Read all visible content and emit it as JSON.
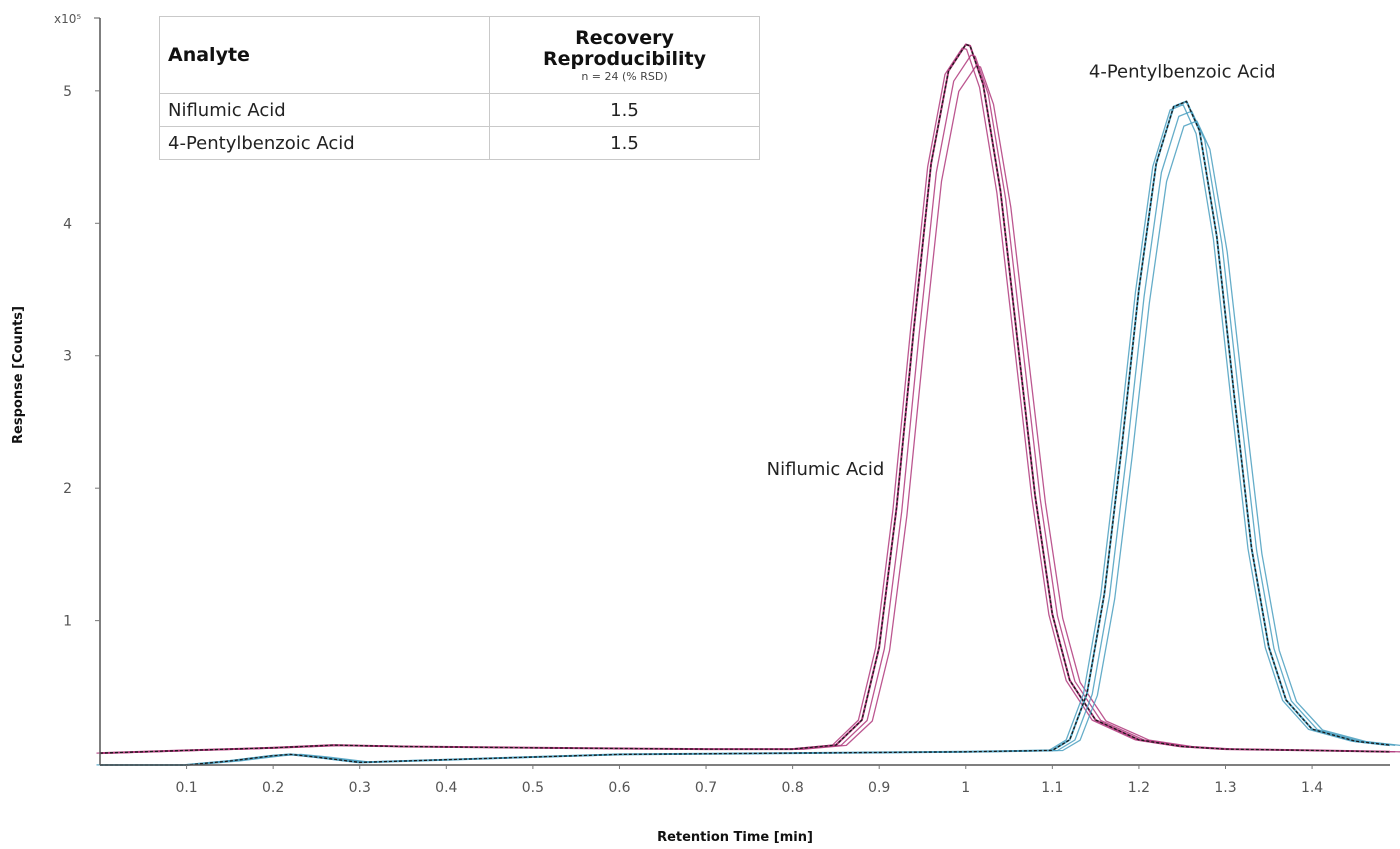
{
  "chart_data": {
    "type": "line",
    "xlabel": "Retention Time [min]",
    "ylabel": "Response [Counts]",
    "y_exponent_label": "x10⁵",
    "xlim": [
      0.0,
      1.49
    ],
    "ylim": [
      -0.09,
      5.55
    ],
    "x_ticks": [
      0.1,
      0.2,
      0.3,
      0.4,
      0.5,
      0.6,
      0.7,
      0.8,
      0.9,
      1,
      1.1,
      1.2,
      1.3,
      1.4
    ],
    "x_tick_labels": [
      "0.1",
      "0.2",
      "0.3",
      "0.4",
      "0.5",
      "0.6",
      "0.7",
      "0.8",
      "0.9",
      "1",
      "1.1",
      "1.2",
      "1.3",
      "1.4"
    ],
    "y_ticks": [
      1,
      2,
      3,
      4,
      5
    ],
    "y_tick_labels": [
      "1",
      "2",
      "3",
      "4",
      "5"
    ],
    "grid": false,
    "annotations": [
      {
        "text": "Niflumic Acid",
        "x": 0.77,
        "y": 2.1
      },
      {
        "text": "4-Pentylbenzoic Acid",
        "x": 1.25,
        "y": 5.1
      }
    ],
    "series": [
      {
        "name": "Niflumic Acid",
        "color": "#b03a7c",
        "x": [
          0.0,
          0.1,
          0.2,
          0.27,
          0.35,
          0.5,
          0.7,
          0.8,
          0.85,
          0.88,
          0.9,
          0.92,
          0.94,
          0.96,
          0.98,
          1.0,
          1.005,
          1.02,
          1.04,
          1.06,
          1.08,
          1.1,
          1.12,
          1.15,
          1.2,
          1.25,
          1.3,
          1.4,
          1.49
        ],
        "values": [
          0.0,
          0.02,
          0.04,
          0.06,
          0.05,
          0.04,
          0.03,
          0.03,
          0.06,
          0.25,
          0.8,
          1.85,
          3.2,
          4.45,
          5.15,
          5.35,
          5.34,
          5.05,
          4.25,
          3.1,
          1.95,
          1.05,
          0.55,
          0.25,
          0.1,
          0.05,
          0.03,
          0.02,
          0.01
        ]
      },
      {
        "name": "4-Pentylbenzoic Acid",
        "color": "#4a9fbf",
        "x": [
          0.0,
          0.1,
          0.15,
          0.2,
          0.22,
          0.25,
          0.3,
          0.4,
          0.6,
          0.8,
          1.0,
          1.1,
          1.12,
          1.14,
          1.16,
          1.18,
          1.2,
          1.22,
          1.24,
          1.255,
          1.27,
          1.29,
          1.31,
          1.33,
          1.35,
          1.37,
          1.4,
          1.45,
          1.49
        ],
        "values": [
          -0.09,
          -0.09,
          -0.06,
          -0.02,
          -0.01,
          -0.03,
          -0.07,
          -0.05,
          -0.01,
          0.0,
          0.01,
          0.02,
          0.1,
          0.45,
          1.2,
          2.3,
          3.5,
          4.45,
          4.88,
          4.92,
          4.7,
          3.9,
          2.7,
          1.55,
          0.8,
          0.4,
          0.18,
          0.09,
          0.06
        ]
      }
    ]
  },
  "table": {
    "header_analyte": "Analyte",
    "header_recovery_line1": "Recovery",
    "header_recovery_line2": "Reproducibility",
    "header_recovery_sub": "n = 24 (% RSD)",
    "rows": [
      {
        "analyte": "Niflumic Acid",
        "value": "1.5"
      },
      {
        "analyte": "4-Pentylbenzoic Acid",
        "value": "1.5"
      }
    ]
  }
}
